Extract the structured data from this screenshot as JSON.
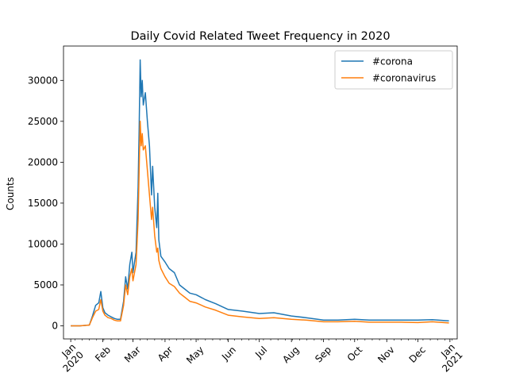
{
  "chart_data": {
    "type": "line",
    "title": "Daily Covid Related Tweet Frequency in 2020",
    "xlabel": "",
    "ylabel": "Counts",
    "xlim": [
      "2019-12-25",
      "2021-01-08"
    ],
    "ylim": [
      -1600,
      34200
    ],
    "grid": false,
    "legend_position": "top-right",
    "y_ticks": [
      0,
      5000,
      10000,
      15000,
      20000,
      25000,
      30000
    ],
    "x_ticks": [
      {
        "date": "2020-01-01",
        "label": "Jan\n2020"
      },
      {
        "date": "2020-02-01",
        "label": "Feb"
      },
      {
        "date": "2020-03-01",
        "label": "Mar"
      },
      {
        "date": "2020-04-01",
        "label": "Apr"
      },
      {
        "date": "2020-05-01",
        "label": "May"
      },
      {
        "date": "2020-06-01",
        "label": "Jun"
      },
      {
        "date": "2020-07-01",
        "label": "Jul"
      },
      {
        "date": "2020-08-01",
        "label": "Aug"
      },
      {
        "date": "2020-09-01",
        "label": "Sep"
      },
      {
        "date": "2020-10-01",
        "label": "Oct"
      },
      {
        "date": "2020-11-01",
        "label": "Nov"
      },
      {
        "date": "2020-12-01",
        "label": "Dec"
      },
      {
        "date": "2021-01-01",
        "label": "Jan\n2021"
      }
    ],
    "series": [
      {
        "name": "#corona",
        "color": "#1f77b4",
        "points": [
          [
            "2020-01-01",
            0
          ],
          [
            "2020-01-10",
            0
          ],
          [
            "2020-01-19",
            100
          ],
          [
            "2020-01-22",
            1200
          ],
          [
            "2020-01-25",
            2500
          ],
          [
            "2020-01-28",
            2800
          ],
          [
            "2020-01-30",
            4200
          ],
          [
            "2020-02-01",
            2200
          ],
          [
            "2020-02-03",
            1600
          ],
          [
            "2020-02-06",
            1300
          ],
          [
            "2020-02-09",
            1100
          ],
          [
            "2020-02-12",
            900
          ],
          [
            "2020-02-15",
            800
          ],
          [
            "2020-02-18",
            800
          ],
          [
            "2020-02-21",
            3000
          ],
          [
            "2020-02-23",
            6000
          ],
          [
            "2020-02-25",
            4500
          ],
          [
            "2020-02-27",
            7500
          ],
          [
            "2020-02-29",
            9000
          ],
          [
            "2020-03-01",
            6500
          ],
          [
            "2020-03-04",
            9000
          ],
          [
            "2020-03-06",
            17000
          ],
          [
            "2020-03-07",
            24000
          ],
          [
            "2020-03-08",
            32500
          ],
          [
            "2020-03-09",
            28000
          ],
          [
            "2020-03-10",
            30000
          ],
          [
            "2020-03-11",
            27000
          ],
          [
            "2020-03-13",
            28500
          ],
          [
            "2020-03-15",
            25000
          ],
          [
            "2020-03-17",
            22000
          ],
          [
            "2020-03-19",
            16000
          ],
          [
            "2020-03-20",
            19500
          ],
          [
            "2020-03-22",
            14500
          ],
          [
            "2020-03-24",
            12000
          ],
          [
            "2020-03-25",
            16200
          ],
          [
            "2020-03-26",
            10500
          ],
          [
            "2020-03-28",
            8500
          ],
          [
            "2020-04-01",
            7800
          ],
          [
            "2020-04-05",
            7000
          ],
          [
            "2020-04-10",
            6500
          ],
          [
            "2020-04-15",
            5000
          ],
          [
            "2020-04-20",
            4500
          ],
          [
            "2020-04-25",
            4000
          ],
          [
            "2020-05-01",
            3800
          ],
          [
            "2020-05-10",
            3200
          ],
          [
            "2020-05-20",
            2700
          ],
          [
            "2020-06-01",
            2000
          ],
          [
            "2020-06-15",
            1800
          ],
          [
            "2020-07-01",
            1500
          ],
          [
            "2020-07-15",
            1600
          ],
          [
            "2020-08-01",
            1200
          ],
          [
            "2020-08-15",
            1000
          ],
          [
            "2020-09-01",
            700
          ],
          [
            "2020-09-15",
            700
          ],
          [
            "2020-10-01",
            800
          ],
          [
            "2020-10-15",
            700
          ],
          [
            "2020-11-01",
            700
          ],
          [
            "2020-11-15",
            700
          ],
          [
            "2020-12-01",
            700
          ],
          [
            "2020-12-15",
            750
          ],
          [
            "2020-12-31",
            600
          ]
        ]
      },
      {
        "name": "#coronavirus",
        "color": "#ff7f0e",
        "points": [
          [
            "2020-01-01",
            0
          ],
          [
            "2020-01-10",
            0
          ],
          [
            "2020-01-19",
            100
          ],
          [
            "2020-01-22",
            1000
          ],
          [
            "2020-01-25",
            1800
          ],
          [
            "2020-01-28",
            2000
          ],
          [
            "2020-01-30",
            3200
          ],
          [
            "2020-02-01",
            1800
          ],
          [
            "2020-02-03",
            1300
          ],
          [
            "2020-02-06",
            1000
          ],
          [
            "2020-02-09",
            900
          ],
          [
            "2020-02-12",
            700
          ],
          [
            "2020-02-15",
            600
          ],
          [
            "2020-02-18",
            600
          ],
          [
            "2020-02-21",
            2500
          ],
          [
            "2020-02-23",
            5000
          ],
          [
            "2020-02-25",
            3800
          ],
          [
            "2020-02-27",
            6000
          ],
          [
            "2020-02-29",
            7000
          ],
          [
            "2020-03-01",
            5500
          ],
          [
            "2020-03-04",
            7500
          ],
          [
            "2020-03-06",
            13000
          ],
          [
            "2020-03-07",
            19000
          ],
          [
            "2020-03-08",
            25000
          ],
          [
            "2020-03-09",
            22000
          ],
          [
            "2020-03-10",
            23500
          ],
          [
            "2020-03-11",
            21500
          ],
          [
            "2020-03-13",
            22000
          ],
          [
            "2020-03-15",
            19000
          ],
          [
            "2020-03-17",
            16000
          ],
          [
            "2020-03-19",
            13000
          ],
          [
            "2020-03-20",
            14500
          ],
          [
            "2020-03-22",
            11000
          ],
          [
            "2020-03-24",
            9000
          ],
          [
            "2020-03-25",
            9500
          ],
          [
            "2020-03-26",
            8000
          ],
          [
            "2020-03-28",
            7000
          ],
          [
            "2020-04-01",
            6000
          ],
          [
            "2020-04-05",
            5200
          ],
          [
            "2020-04-10",
            4800
          ],
          [
            "2020-04-15",
            4000
          ],
          [
            "2020-04-20",
            3500
          ],
          [
            "2020-04-25",
            3000
          ],
          [
            "2020-05-01",
            2800
          ],
          [
            "2020-05-10",
            2300
          ],
          [
            "2020-05-20",
            1900
          ],
          [
            "2020-06-01",
            1300
          ],
          [
            "2020-06-15",
            1100
          ],
          [
            "2020-07-01",
            900
          ],
          [
            "2020-07-15",
            1000
          ],
          [
            "2020-08-01",
            800
          ],
          [
            "2020-08-15",
            700
          ],
          [
            "2020-09-01",
            500
          ],
          [
            "2020-09-15",
            500
          ],
          [
            "2020-10-01",
            550
          ],
          [
            "2020-10-15",
            450
          ],
          [
            "2020-11-01",
            450
          ],
          [
            "2020-11-15",
            450
          ],
          [
            "2020-12-01",
            400
          ],
          [
            "2020-12-15",
            500
          ],
          [
            "2020-12-31",
            350
          ]
        ]
      }
    ]
  }
}
